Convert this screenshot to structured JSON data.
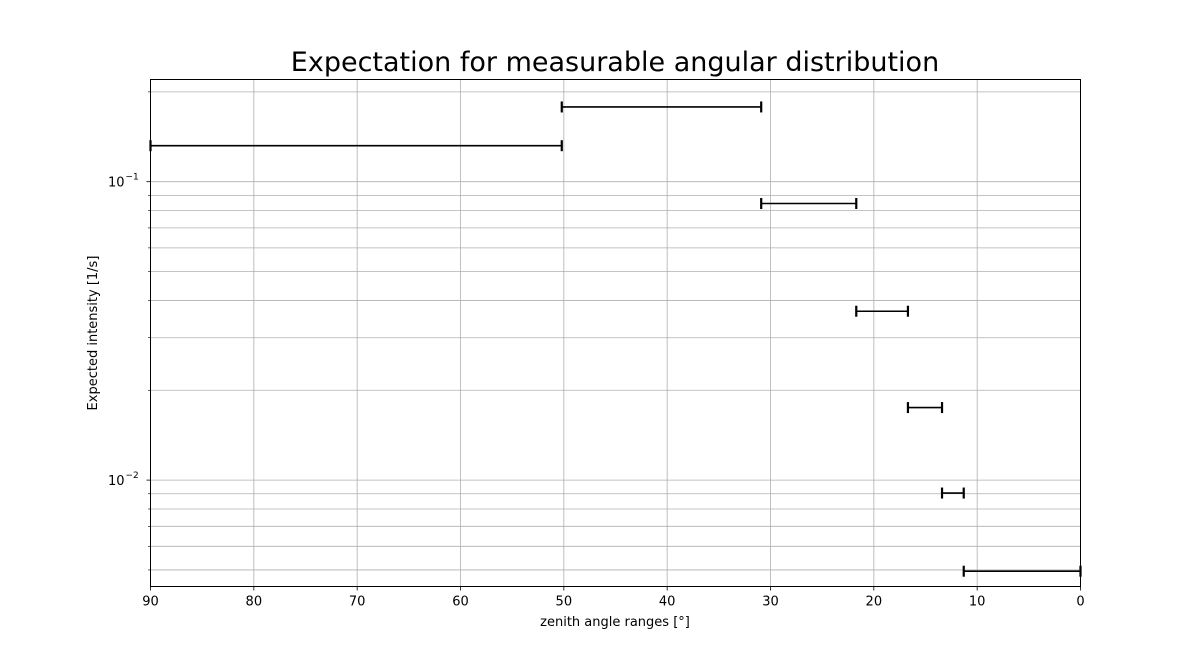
{
  "chart_data": {
    "type": "errorbar",
    "title": "Expectation for measurable angular distribution",
    "xlabel": "zenith angle ranges [°]",
    "ylabel": "Expected intensity [1/s]",
    "xlim": [
      90,
      0
    ],
    "x_inverted": true,
    "ylim": [
      0.0044,
      0.22
    ],
    "yscale": "log",
    "grid": true,
    "x_ticks": [
      90,
      80,
      70,
      60,
      50,
      40,
      30,
      20,
      10,
      0
    ],
    "y_ticks": [
      {
        "value": 0.1,
        "base": "10",
        "exp": "−1"
      },
      {
        "value": 0.01,
        "base": "10",
        "exp": "−2"
      }
    ],
    "segments": [
      {
        "x_start": 90,
        "x_end": 50.2,
        "y": 0.132
      },
      {
        "x_start": 50.2,
        "x_end": 30.9,
        "y": 0.178
      },
      {
        "x_start": 30.9,
        "x_end": 21.7,
        "y": 0.0845
      },
      {
        "x_start": 21.7,
        "x_end": 16.7,
        "y": 0.0368
      },
      {
        "x_start": 16.7,
        "x_end": 13.4,
        "y": 0.0175
      },
      {
        "x_start": 13.4,
        "x_end": 11.3,
        "y": 0.00905
      },
      {
        "x_start": 11.3,
        "x_end": 0,
        "y": 0.00495
      }
    ],
    "color": "#000000"
  }
}
